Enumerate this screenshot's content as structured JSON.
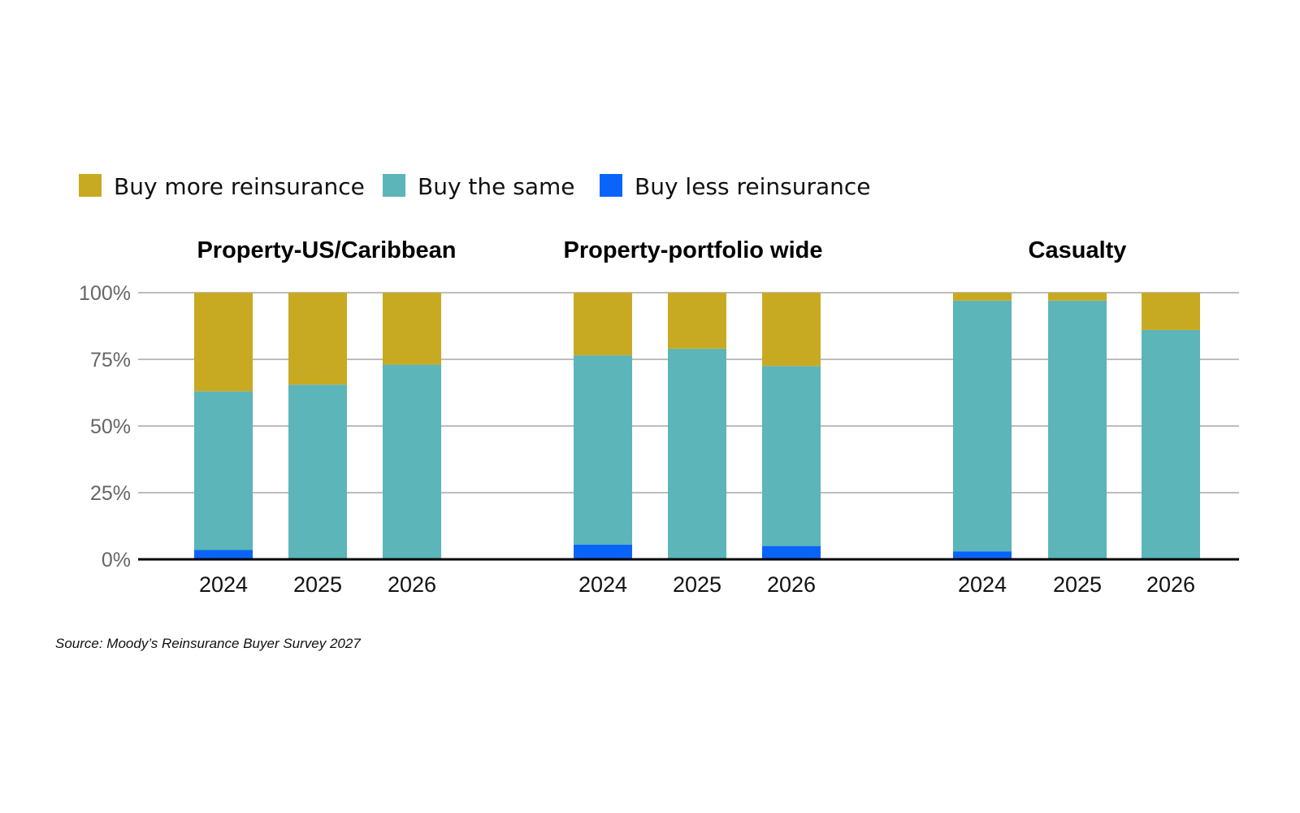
{
  "chart_data": {
    "type": "bar",
    "stacked": true,
    "legend": [
      {
        "name": "Buy more reinsurance",
        "color": "#C8AA22"
      },
      {
        "name": "Buy the same",
        "color": "#5BB5B9"
      },
      {
        "name": "Buy less reinsurance",
        "color": "#0A64FA"
      }
    ],
    "ylim": [
      0,
      100
    ],
    "yticks": [
      "0%",
      "25%",
      "50%",
      "75%",
      "100%"
    ],
    "ytick_values": [
      0,
      25,
      50,
      75,
      100
    ],
    "grid": true,
    "legend_position": "top-left",
    "panels": [
      {
        "title": "Property-US/Caribbean",
        "categories": [
          "2024",
          "2025",
          "2026"
        ],
        "series": [
          {
            "name": "Buy less reinsurance",
            "values": [
              3.5,
              0,
              0
            ]
          },
          {
            "name": "Buy the same",
            "values": [
              59.5,
              65.5,
              73
            ]
          },
          {
            "name": "Buy more reinsurance",
            "values": [
              37,
              34.5,
              27
            ]
          }
        ]
      },
      {
        "title": "Property-portfolio wide",
        "categories": [
          "2024",
          "2025",
          "2026"
        ],
        "series": [
          {
            "name": "Buy less reinsurance",
            "values": [
              5.5,
              0,
              5
            ]
          },
          {
            "name": "Buy the same",
            "values": [
              71,
              79,
              67.5
            ]
          },
          {
            "name": "Buy more reinsurance",
            "values": [
              23.5,
              21,
              27.5
            ]
          }
        ]
      },
      {
        "title": "Casualty",
        "categories": [
          "2024",
          "2025",
          "2026"
        ],
        "series": [
          {
            "name": "Buy less reinsurance",
            "values": [
              3,
              0,
              0
            ]
          },
          {
            "name": "Buy the same",
            "values": [
              94,
              97,
              86
            ]
          },
          {
            "name": "Buy more reinsurance",
            "values": [
              3,
              3,
              14
            ]
          }
        ]
      }
    ],
    "source": "Source: Moody’s Reinsurance Buyer Survey 2027"
  }
}
